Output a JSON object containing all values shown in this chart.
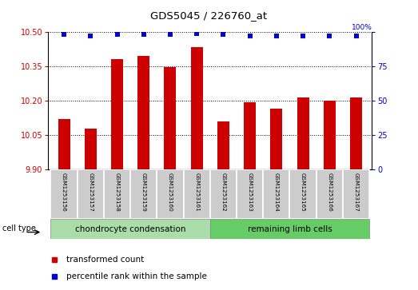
{
  "title": "GDS5045 / 226760_at",
  "samples": [
    "GSM1253156",
    "GSM1253157",
    "GSM1253158",
    "GSM1253159",
    "GSM1253160",
    "GSM1253161",
    "GSM1253162",
    "GSM1253163",
    "GSM1253164",
    "GSM1253165",
    "GSM1253166",
    "GSM1253167"
  ],
  "transformed_counts": [
    10.12,
    10.08,
    10.38,
    10.395,
    10.345,
    10.435,
    10.11,
    10.195,
    10.165,
    10.215,
    10.2,
    10.215
  ],
  "percentile_ranks": [
    98,
    97,
    98,
    98,
    98,
    99,
    98,
    97,
    97,
    97,
    97,
    97
  ],
  "ylim_left": [
    9.9,
    10.5
  ],
  "ylim_right": [
    0,
    100
  ],
  "yticks_left": [
    9.9,
    10.05,
    10.2,
    10.35,
    10.5
  ],
  "yticks_right": [
    0,
    25,
    50,
    75,
    100
  ],
  "bar_color": "#cc0000",
  "dot_color": "#0000cc",
  "group1_label": "chondrocyte condensation",
  "group2_label": "remaining limb cells",
  "group1_color": "#aaddaa",
  "group2_color": "#66cc66",
  "cell_type_label": "cell type",
  "legend_bar_label": "transformed count",
  "legend_dot_label": "percentile rank within the sample",
  "n_group1": 6,
  "n_group2": 6
}
